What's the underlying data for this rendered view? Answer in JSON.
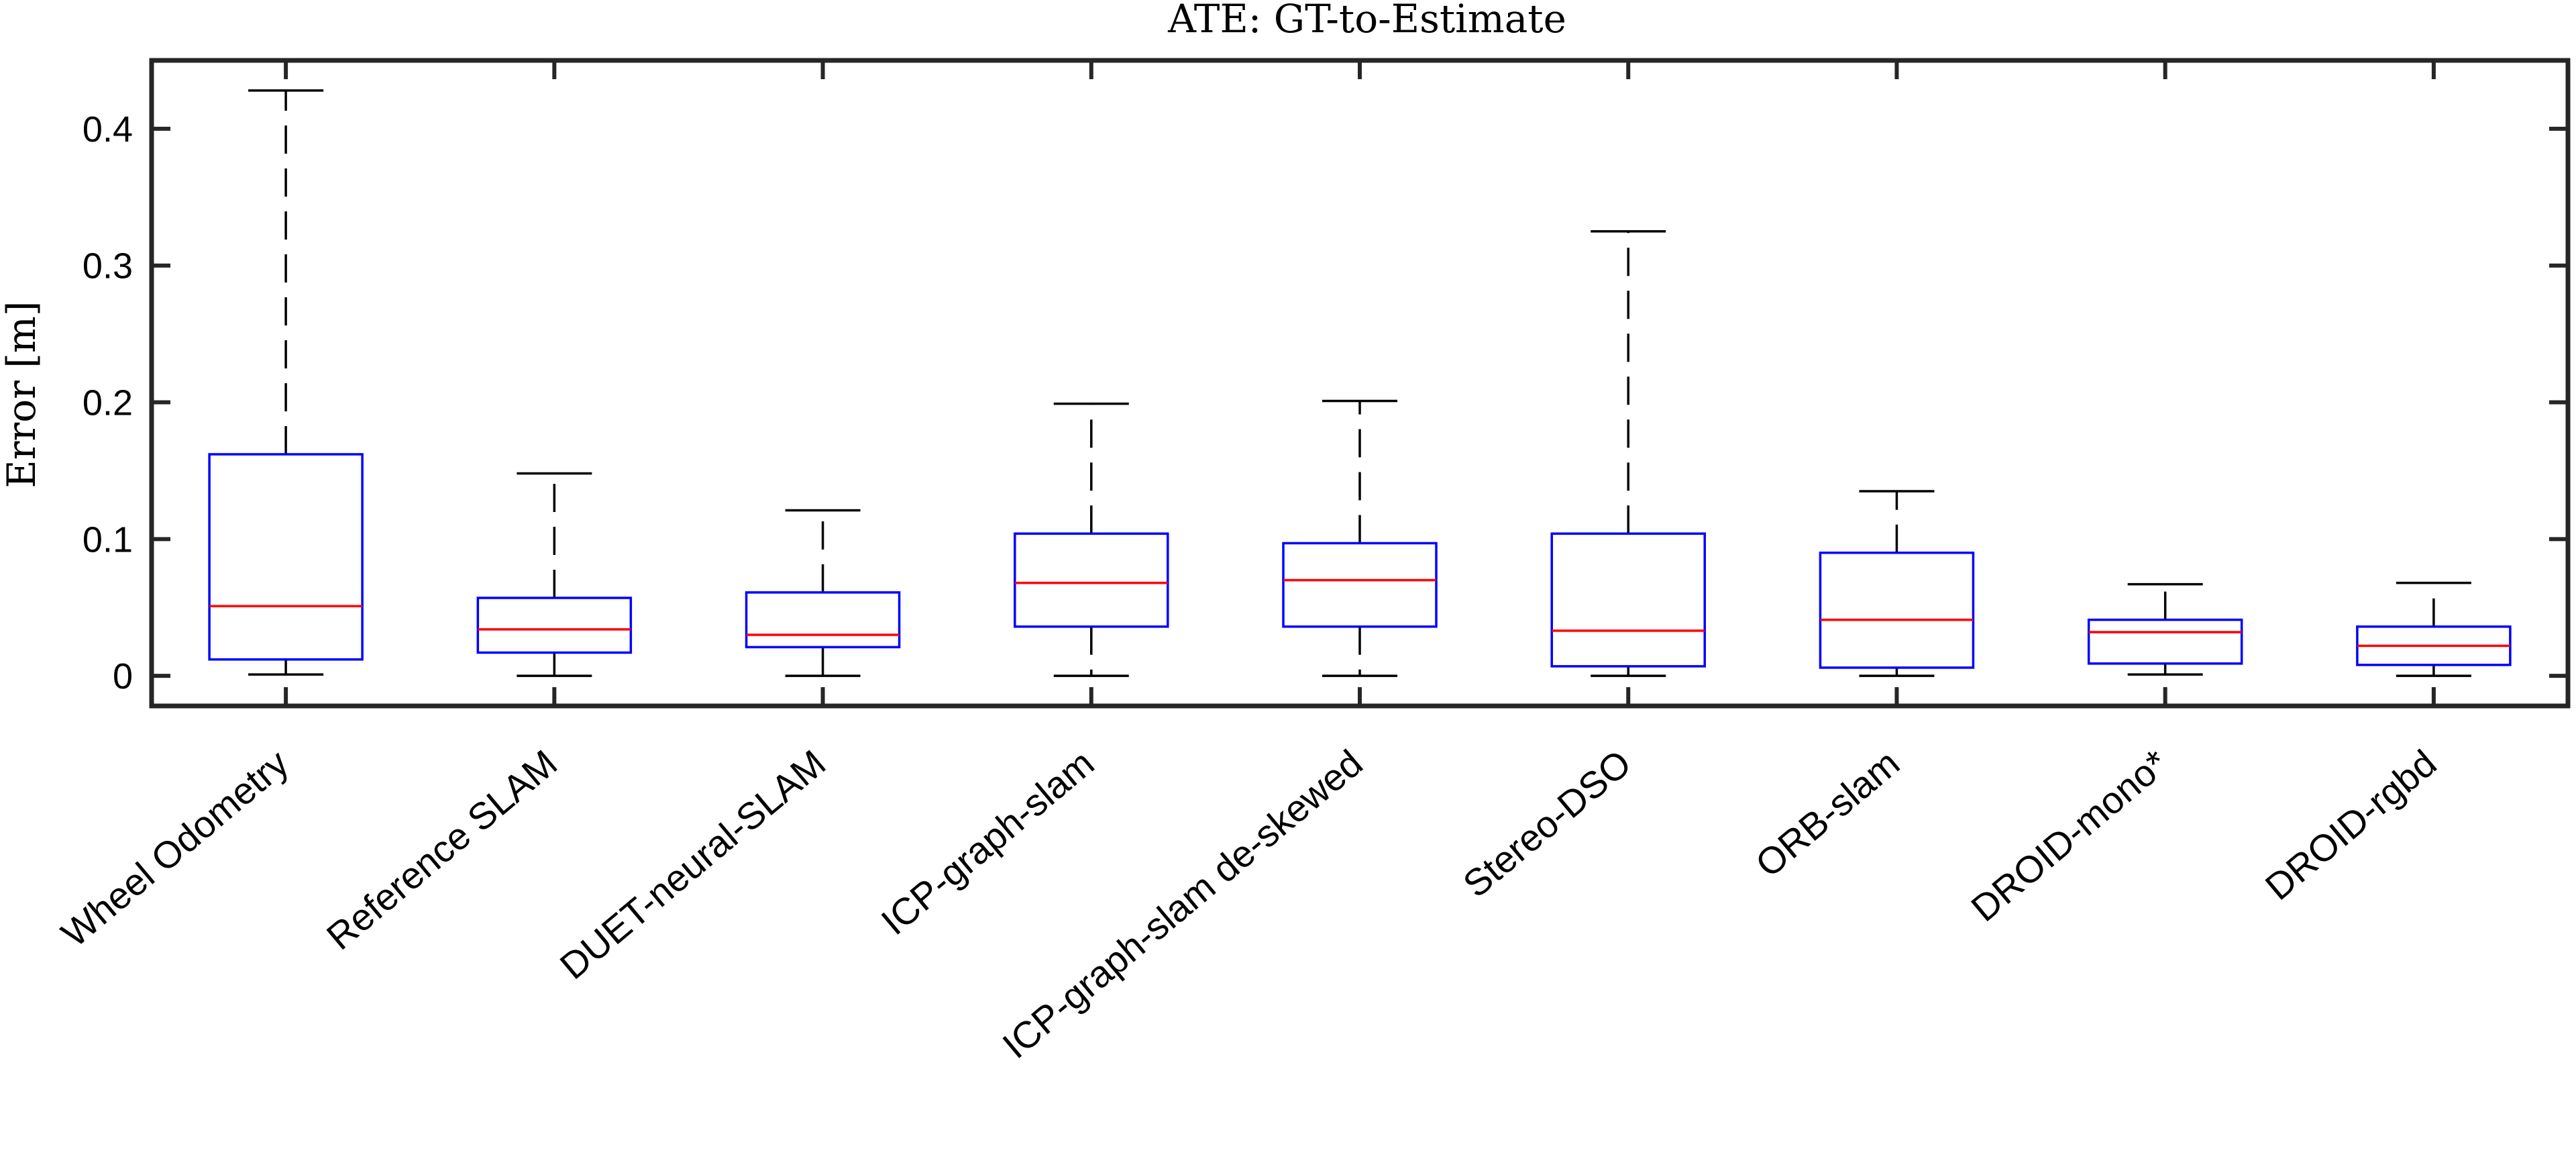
{
  "chart_data": {
    "type": "box",
    "title": "ATE: GT-to-Estimate",
    "ylabel": "Error [m]",
    "xlabel": "",
    "ylim": [
      -0.022,
      0.45
    ],
    "yticks": [
      0,
      0.1,
      0.2,
      0.3,
      0.4
    ],
    "ytick_labels": [
      "0",
      "0.1",
      "0.2",
      "0.3",
      "0.4"
    ],
    "grid": false,
    "legend": "none",
    "colors": {
      "box": "#0000ff",
      "median": "#ff0000",
      "whisker": "#000000",
      "axes": "#262626"
    },
    "categories": [
      "Wheel Odometry",
      "Reference SLAM",
      "DUET-neural-SLAM",
      "ICP-graph-slam",
      "ICP-graph-slam de-skewed",
      "Stereo-DSO",
      "ORB-slam",
      "DROID-mono*",
      "DROID-rgbd"
    ],
    "boxes": [
      {
        "whisker_low": 0.001,
        "q1": 0.012,
        "median": 0.051,
        "q3": 0.162,
        "whisker_high": 0.428
      },
      {
        "whisker_low": 0.0,
        "q1": 0.017,
        "median": 0.034,
        "q3": 0.057,
        "whisker_high": 0.148
      },
      {
        "whisker_low": 0.0,
        "q1": 0.021,
        "median": 0.03,
        "q3": 0.061,
        "whisker_high": 0.121
      },
      {
        "whisker_low": 0.0,
        "q1": 0.036,
        "median": 0.068,
        "q3": 0.104,
        "whisker_high": 0.199
      },
      {
        "whisker_low": 0.0,
        "q1": 0.036,
        "median": 0.07,
        "q3": 0.097,
        "whisker_high": 0.201
      },
      {
        "whisker_low": 0.0,
        "q1": 0.007,
        "median": 0.033,
        "q3": 0.104,
        "whisker_high": 0.325
      },
      {
        "whisker_low": 0.0,
        "q1": 0.006,
        "median": 0.041,
        "q3": 0.09,
        "whisker_high": 0.135
      },
      {
        "whisker_low": 0.001,
        "q1": 0.009,
        "median": 0.032,
        "q3": 0.041,
        "whisker_high": 0.067
      },
      {
        "whisker_low": 0.0,
        "q1": 0.008,
        "median": 0.022,
        "q3": 0.036,
        "whisker_high": 0.068
      }
    ]
  }
}
